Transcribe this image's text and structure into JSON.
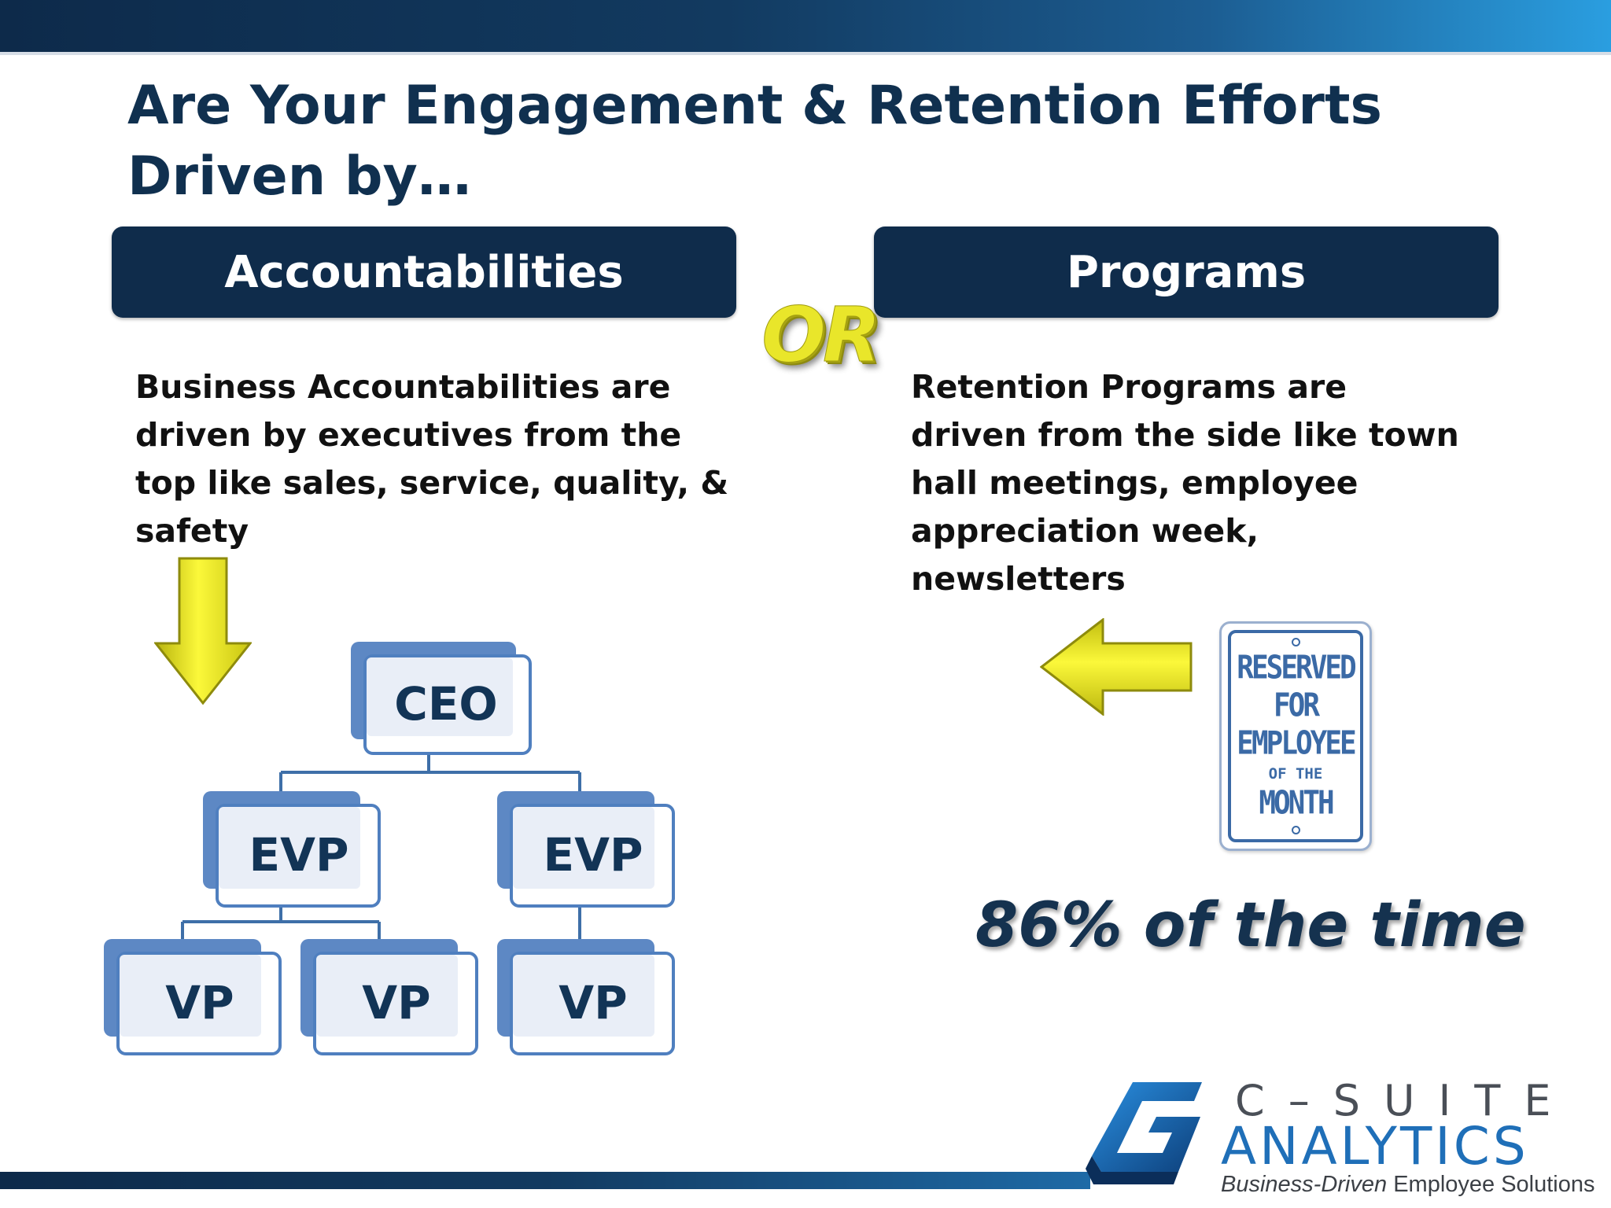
{
  "slide": {
    "title": "Are Your Engagement & Retention Efforts Driven by…",
    "left_header": "Accountabilities",
    "right_header": "Programs",
    "or_label": "OR",
    "left_description": "Business Accountabilities are driven by executives from the top like sales, service, quality, & safety",
    "right_description": "Retention Programs are driven from the side like town hall meetings,  employee appreciation week, newsletters",
    "statistic": "86% of the time"
  },
  "org_chart": {
    "ceo": "CEO",
    "evp_left": "EVP",
    "evp_right": "EVP",
    "vp_1": "VP",
    "vp_2": "VP",
    "vp_3": "VP"
  },
  "sign": {
    "line1": "RESERVED",
    "line2": "FOR",
    "line3": "EMPLOYEE",
    "line4": "OF THE",
    "line5": "MONTH"
  },
  "logo": {
    "name_top": "C–SUITE",
    "name_bottom": "ANALYTICS",
    "tagline_italic": "Business-Driven",
    "tagline_rest": " Employee Solutions"
  },
  "colors": {
    "navy": "#0f2c4b",
    "accent_blue": "#1f6fb8",
    "arrow_yellow": "#f2ee1a"
  },
  "icons": {
    "down_arrow": "down-arrow-icon",
    "left_arrow": "left-arrow-icon",
    "logo_mark": "c-suite-logo-icon"
  }
}
